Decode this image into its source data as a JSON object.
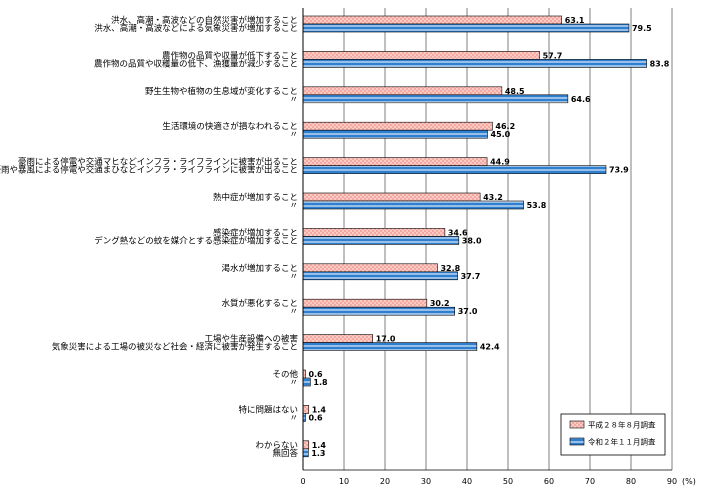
{
  "chart_data": {
    "type": "bar",
    "orientation": "horizontal",
    "xlim": [
      0,
      90
    ],
    "xticks": [
      0,
      10,
      20,
      30,
      40,
      50,
      60,
      70,
      80,
      90
    ],
    "unit_label": "(%)",
    "grid": "vertical",
    "legend_placement": "bottom-right",
    "series": [
      {
        "name": "平成２８年８月調査",
        "color": "#f4a8a0",
        "pattern": "dotted",
        "values": [
          63.1,
          57.7,
          48.5,
          46.2,
          44.9,
          43.2,
          34.6,
          32.8,
          30.2,
          17.0,
          0.6,
          1.4,
          1.4
        ]
      },
      {
        "name": "令和２年１１月調査",
        "color": "#2f7fd0",
        "pattern": "striped",
        "values": [
          79.5,
          83.8,
          64.6,
          45.0,
          73.9,
          53.8,
          38.0,
          37.7,
          37.0,
          42.4,
          1.8,
          0.6,
          1.3
        ]
      }
    ],
    "value_labels": [
      [
        "63.1",
        "79.5"
      ],
      [
        "57.7",
        "83.8"
      ],
      [
        "48.5",
        "64.6"
      ],
      [
        "46.2",
        "45.0"
      ],
      [
        "44.9",
        "73.9"
      ],
      [
        "43.2",
        "53.8"
      ],
      [
        "34.6",
        "38.0"
      ],
      [
        "32.8",
        "37.7"
      ],
      [
        "30.2",
        "37.0"
      ],
      [
        "17.0",
        "42.4"
      ],
      [
        "0.6",
        "1.8"
      ],
      [
        "1.4",
        "0.6"
      ],
      [
        "1.4",
        "1.3"
      ]
    ],
    "categories": [
      [
        "洪水、高潮・高波などの自然災害が増加すること",
        "洪水、高潮・高波などによる気象災害が増加すること"
      ],
      [
        "農作物の品質や収量が低下すること",
        "農作物の品質や収穫量の低下、漁獲量が減少すること"
      ],
      [
        "野生生物や植物の生息域が変化すること",
        "〃"
      ],
      [
        "生活環境の快適さが損なわれること",
        "〃"
      ],
      [
        "豪雨による停電や交通マヒなどインフラ・ライフラインに被害が出ること",
        "豪雨や暴風による停電や交通まひなどインフラ・ライフラインに被害が出ること"
      ],
      [
        "熱中症が増加すること",
        "〃"
      ],
      [
        "感染症が増加すること",
        "デング熱などの蚊を媒介とする感染症が増加すること"
      ],
      [
        "渇水が増加すること",
        "〃"
      ],
      [
        "水質が悪化すること",
        "〃"
      ],
      [
        "工場や生産設備への被害",
        "気象災害による工場の被災など社会・経済に被害が発生すること"
      ],
      [
        "その他",
        "〃"
      ],
      [
        "特に問題はない",
        "〃"
      ],
      [
        "わからない",
        "無回答"
      ]
    ]
  }
}
